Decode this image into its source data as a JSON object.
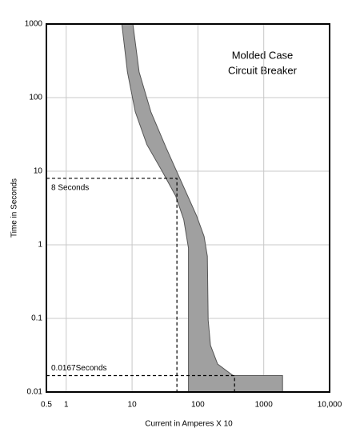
{
  "chart_data": {
    "type": "area",
    "title": [
      "Molded Case",
      "Circuit Breaker"
    ],
    "x_label": "Current in Amperes X 10",
    "y_label": "Time in Seconds",
    "log_x": true,
    "log_y": true,
    "grid": true,
    "xlim": [
      0.5,
      10000
    ],
    "ylim": [
      0.01,
      1000
    ],
    "xticks": [
      0.5,
      1,
      10,
      100,
      1000,
      {
        "value": 10000,
        "label": "10,000"
      }
    ],
    "yticks": [
      0.01,
      0.1,
      1,
      10,
      100,
      1000
    ],
    "band": {
      "color": "#a0a0a0",
      "x": [
        7,
        8.5,
        11.2,
        16.8,
        29,
        46,
        61,
        72,
        72,
        1930,
        1930,
        343,
        199,
        155,
        143,
        139,
        124,
        95,
        58,
        33,
        19.3,
        12.8,
        10.3
      ],
      "y": [
        1000,
        223,
        64,
        23,
        9.8,
        4.6,
        2.2,
        0.9,
        0.01,
        0.01,
        0.0167,
        0.0167,
        0.024,
        0.043,
        0.095,
        0.7,
        1.3,
        2.5,
        6.7,
        20.6,
        64,
        223,
        1000
      ]
    },
    "reference_lines": [
      {
        "x": 48,
        "y": 8,
        "label": "8 Seconds"
      },
      {
        "x": 360,
        "y": 0.0167,
        "label": "0.0167Seconds"
      }
    ]
  }
}
